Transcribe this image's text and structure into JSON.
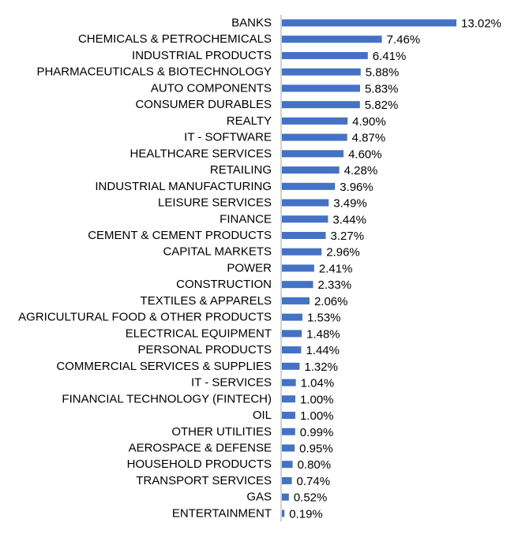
{
  "chart_data": {
    "type": "bar",
    "orientation": "horizontal",
    "title": "",
    "xlabel": "",
    "ylabel": "",
    "grid": false,
    "legend": "none",
    "bar_color": "#4472c4",
    "axis_color": "#a6a6a6",
    "xlim": [
      0,
      13.02
    ],
    "categories": [
      "BANKS",
      "CHEMICALS & PETROCHEMICALS",
      "INDUSTRIAL PRODUCTS",
      "PHARMACEUTICALS & BIOTECHNOLOGY",
      "AUTO COMPONENTS",
      "CONSUMER DURABLES",
      "REALTY",
      "IT - SOFTWARE",
      "HEALTHCARE SERVICES",
      "RETAILING",
      "INDUSTRIAL MANUFACTURING",
      "LEISURE SERVICES",
      "FINANCE",
      "CEMENT & CEMENT PRODUCTS",
      "CAPITAL MARKETS",
      "POWER",
      "CONSTRUCTION",
      "TEXTILES & APPARELS",
      "AGRICULTURAL FOOD & OTHER PRODUCTS",
      "ELECTRICAL EQUIPMENT",
      "PERSONAL PRODUCTS",
      "COMMERCIAL SERVICES & SUPPLIES",
      "IT - SERVICES",
      "FINANCIAL TECHNOLOGY (FINTECH)",
      "OIL",
      "OTHER UTILITIES",
      "AEROSPACE & DEFENSE",
      "HOUSEHOLD PRODUCTS",
      "TRANSPORT SERVICES",
      "GAS",
      "ENTERTAINMENT"
    ],
    "values": [
      13.02,
      7.46,
      6.41,
      5.88,
      5.83,
      5.82,
      4.9,
      4.87,
      4.6,
      4.28,
      3.96,
      3.49,
      3.44,
      3.27,
      2.96,
      2.41,
      2.33,
      2.06,
      1.53,
      1.48,
      1.44,
      1.32,
      1.04,
      1.0,
      1.0,
      0.99,
      0.95,
      0.8,
      0.74,
      0.52,
      0.19
    ],
    "data_labels": [
      "13.02%",
      "7.46%",
      "6.41%",
      "5.88%",
      "5.83%",
      "5.82%",
      "4.90%",
      "4.87%",
      "4.60%",
      "4.28%",
      "3.96%",
      "3.49%",
      "3.44%",
      "3.27%",
      "2.96%",
      "2.41%",
      "2.33%",
      "2.06%",
      "1.53%",
      "1.48%",
      "1.44%",
      "1.32%",
      "1.04%",
      "1.00%",
      "1.00%",
      "0.99%",
      "0.95%",
      "0.80%",
      "0.74%",
      "0.52%",
      "0.19%"
    ]
  }
}
